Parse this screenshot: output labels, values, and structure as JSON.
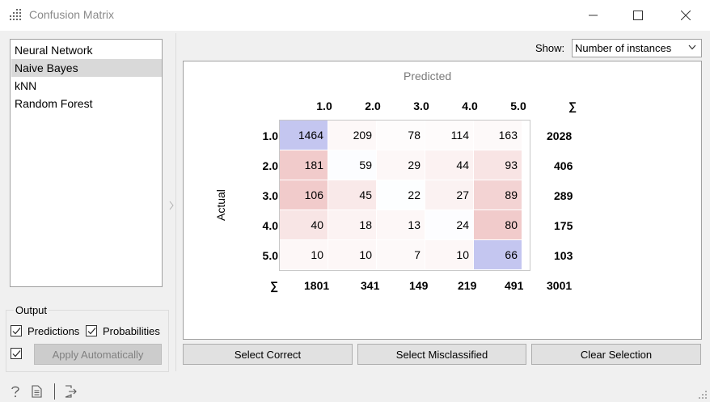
{
  "window": {
    "title": "Confusion Matrix"
  },
  "learners": [
    {
      "label": "Neural Network",
      "selected": false
    },
    {
      "label": "Naive Bayes",
      "selected": true
    },
    {
      "label": "kNN",
      "selected": false
    },
    {
      "label": "Random Forest",
      "selected": false
    }
  ],
  "output": {
    "legend": "Output",
    "predictions_label": "Predictions",
    "predictions_checked": true,
    "probabilities_label": "Probabilities",
    "probabilities_checked": true,
    "auto_checked": true,
    "apply_label": "Apply Automatically"
  },
  "show": {
    "label": "Show:",
    "value": "Number of instances"
  },
  "matrix": {
    "predicted_label": "Predicted",
    "actual_label": "Actual",
    "sum_symbol": "∑",
    "classes": [
      "1.0",
      "2.0",
      "3.0",
      "4.0",
      "5.0"
    ],
    "values": [
      [
        1464,
        209,
        78,
        114,
        163
      ],
      [
        181,
        59,
        29,
        44,
        93
      ],
      [
        106,
        45,
        22,
        27,
        89
      ],
      [
        40,
        18,
        13,
        24,
        80
      ],
      [
        10,
        10,
        7,
        10,
        66
      ]
    ],
    "row_sums": [
      "2028",
      "406",
      "289",
      "175",
      "103"
    ],
    "col_sums": [
      "1801",
      "341",
      "149",
      "219",
      "491"
    ],
    "total": "3001",
    "colors": {
      "diagonal": "#c4c6f0",
      "off_diagonal": "#f0c8c8"
    }
  },
  "buttons": {
    "select_correct": "Select Correct",
    "select_misclassified": "Select Misclassified",
    "clear_selection": "Clear Selection"
  },
  "icons": {
    "app": "grid-dots-icon",
    "help": "question-icon",
    "report": "document-icon",
    "export": "export-icon"
  }
}
